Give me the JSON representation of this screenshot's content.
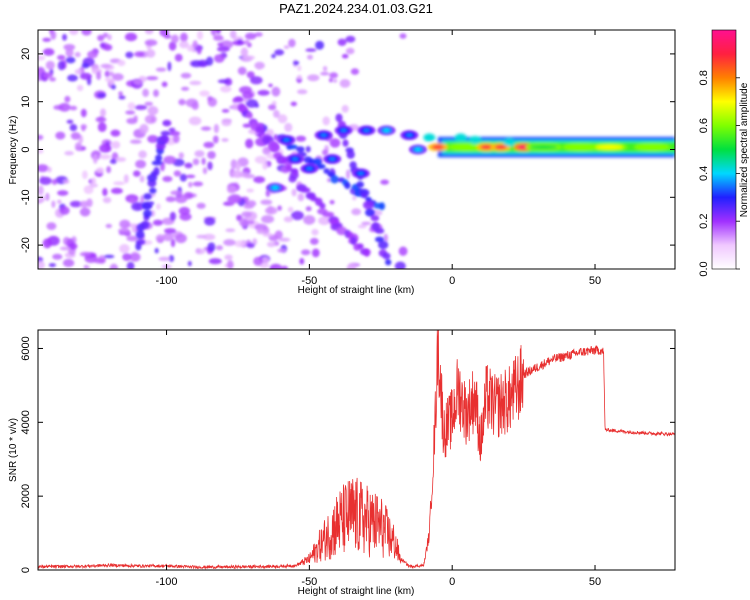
{
  "figure_title": "PAZ1.2024.234.01.03.G21",
  "chart_data": [
    {
      "type": "heatmap",
      "xlabel": "Height of straight line (km)",
      "ylabel": "Frequency (Hz)",
      "xlim": [
        -145,
        78
      ],
      "ylim": [
        -25,
        25
      ],
      "xticks": [
        -100,
        -50,
        0,
        50
      ],
      "yticks": [
        -20,
        -10,
        0,
        10,
        20
      ],
      "colorbar": {
        "label": "Normalized spectral amplitude",
        "range": [
          0,
          1
        ],
        "ticks": [
          "0.0",
          "0.2",
          "0.4",
          "0.6",
          "0.8"
        ],
        "colormap": [
          "#ffffff",
          "#f0c8ff",
          "#a030ff",
          "#2020ff",
          "#00d8ff",
          "#00e040",
          "#80ff00",
          "#ffff00",
          "#ff8000",
          "#ff2040",
          "#ff1090"
        ]
      },
      "features": {
        "noise_region_km": [
          -145,
          -15
        ],
        "diagonal_streaks": [
          {
            "from": [
              -60,
              2
            ],
            "to": [
              -25,
              -12
            ],
            "amplitude": 0.3
          },
          {
            "from": [
              -40,
              7
            ],
            "to": [
              -22,
              -24
            ],
            "amplitude": 0.25
          },
          {
            "from": [
              -110,
              -20
            ],
            "to": [
              -100,
              5
            ],
            "amplitude": 0.25
          },
          {
            "from": [
              -52,
              -8
            ],
            "to": [
              -30,
              -22
            ],
            "amplitude": 0.2
          },
          {
            "from": [
              -75,
              10
            ],
            "to": [
              -55,
              -5
            ],
            "amplitude": 0.2
          }
        ],
        "strong_blobs": [
          [
            -62,
            -8,
            0.35
          ],
          [
            -58,
            2,
            0.3
          ],
          [
            -55,
            -2,
            0.3
          ],
          [
            -50,
            -4,
            0.3
          ],
          [
            -45,
            3,
            0.3
          ],
          [
            -42,
            -2,
            0.3
          ],
          [
            -38,
            4,
            0.3
          ],
          [
            -32,
            -5,
            0.3
          ],
          [
            -30,
            4,
            0.3
          ],
          [
            -23,
            4,
            0.35
          ],
          [
            -15,
            3,
            0.3
          ],
          [
            -12,
            0,
            0.35
          ]
        ],
        "signal_band": {
          "x_range": [
            -5,
            78
          ],
          "center_hz": 0.5,
          "halfwidth_hz": 1.5,
          "hot_spots": [
            [
              -5,
              0.9
            ],
            [
              5,
              0.6
            ],
            [
              12,
              0.9
            ],
            [
              17,
              0.9
            ],
            [
              25,
              0.95
            ],
            [
              32,
              0.5
            ],
            [
              45,
              0.6
            ],
            [
              55,
              0.7
            ],
            [
              70,
              0.6
            ]
          ]
        }
      }
    },
    {
      "type": "line",
      "xlabel": "Height of straight line (km)",
      "ylabel": "SNR (10 * v/v)",
      "xlim": [
        -145,
        78
      ],
      "ylim": [
        0,
        6500
      ],
      "xticks": [
        -100,
        -50,
        0,
        50
      ],
      "yticks": [
        0,
        2000,
        4000,
        6000
      ],
      "series": [
        {
          "color": "#e83030",
          "x": [
            -145,
            -130,
            -120,
            -110,
            -100,
            -90,
            -80,
            -70,
            -60,
            -55,
            -50,
            -45,
            -40,
            -35,
            -30,
            -25,
            -20,
            -18,
            -15,
            -10,
            -8,
            -6,
            -5,
            -3,
            0,
            2,
            5,
            8,
            10,
            12,
            15,
            20,
            25,
            30,
            35,
            40,
            45,
            50,
            52,
            53,
            53.5,
            60,
            70,
            78
          ],
          "y": [
            90,
            100,
            130,
            110,
            110,
            80,
            80,
            90,
            100,
            120,
            350,
            1000,
            1600,
            1900,
            1700,
            1500,
            900,
            300,
            100,
            120,
            1000,
            4000,
            6400,
            3800,
            4200,
            5000,
            4300,
            4800,
            3500,
            4800,
            4500,
            4700,
            5300,
            5500,
            5700,
            5800,
            5900,
            5950,
            5950,
            5900,
            3800,
            3750,
            3700,
            3680
          ]
        }
      ]
    }
  ]
}
